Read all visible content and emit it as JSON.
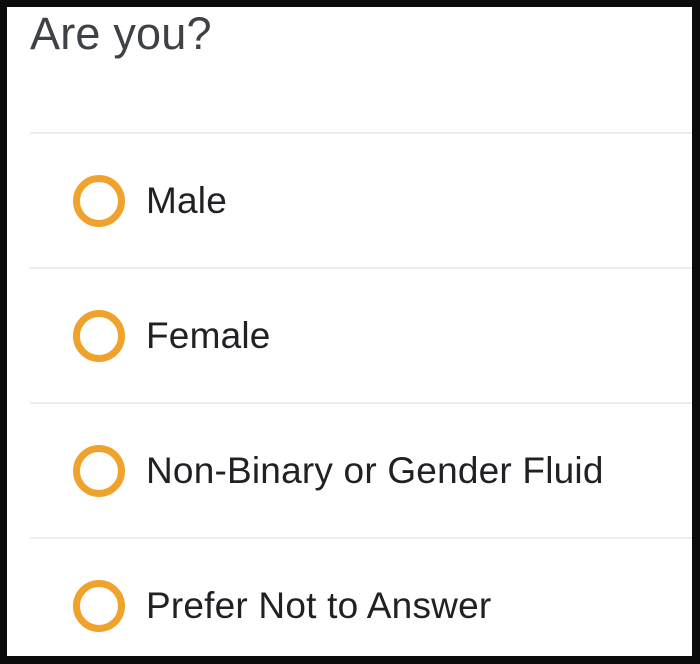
{
  "question": {
    "title": "Are you?"
  },
  "options": [
    {
      "label": "Male",
      "selected": false
    },
    {
      "label": "Female",
      "selected": false
    },
    {
      "label": "Non-Binary or Gender Fluid",
      "selected": false
    },
    {
      "label": "Prefer Not to Answer",
      "selected": false
    }
  ],
  "colors": {
    "accent": "#efa32d",
    "option_text": "#202124",
    "title_text": "#3e4145",
    "divider": "#ededec",
    "frame_border": "#0b0b0b"
  }
}
